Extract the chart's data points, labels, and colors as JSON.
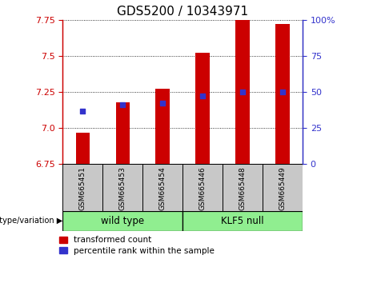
{
  "title": "GDS5200 / 10343971",
  "samples": [
    "GSM665451",
    "GSM665453",
    "GSM665454",
    "GSM665446",
    "GSM665448",
    "GSM665449"
  ],
  "transformed_count": [
    6.97,
    7.18,
    7.27,
    7.52,
    7.75,
    7.72
  ],
  "percentile_rank_y": [
    7.12,
    7.16,
    7.17,
    7.22,
    7.25,
    7.25
  ],
  "y_min": 6.75,
  "y_max": 7.75,
  "y_ticks_left": [
    6.75,
    7.0,
    7.25,
    7.5,
    7.75
  ],
  "y_ticks_right": [
    0,
    25,
    50,
    75,
    100
  ],
  "bar_base": 6.75,
  "bar_color": "#CC0000",
  "dot_color": "#3333CC",
  "title_fontsize": 11,
  "tick_fontsize": 8,
  "left_tick_color": "#CC0000",
  "right_tick_color": "#3333CC",
  "legend_labels": [
    "transformed count",
    "percentile rank within the sample"
  ],
  "legend_colors": [
    "#CC0000",
    "#3333CC"
  ],
  "wildtype_color": "#90EE90",
  "klf5_color": "#90EE90",
  "sample_box_color": "#C8C8C8"
}
